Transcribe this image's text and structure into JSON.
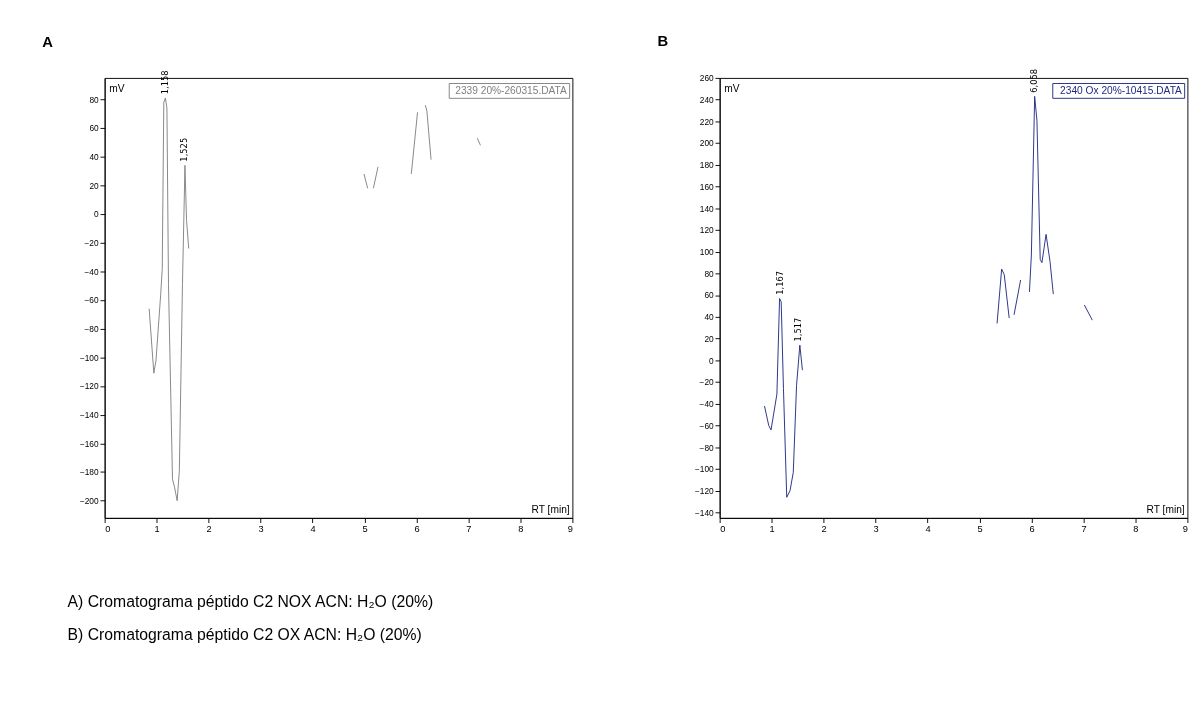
{
  "chart_data": [
    {
      "type": "line",
      "title": "A",
      "xlabel": "RT [min]",
      "ylabel": "mV",
      "xlim": [
        0,
        9
      ],
      "xticks": [
        0,
        1,
        2,
        3,
        4,
        5,
        6,
        7,
        8,
        9
      ],
      "ylim": [
        -212,
        95
      ],
      "yticks": [
        80,
        60,
        40,
        20,
        0,
        -20,
        -40,
        -60,
        -80,
        -100,
        -120,
        -140,
        -160,
        -180,
        -200
      ],
      "legend": "top right",
      "grid": false,
      "x": [
        0.856,
        0.946,
        0.988,
        1.078,
        1.108,
        1.138,
        1.168,
        1.198,
        1.228,
        1.305,
        1.347,
        1.395,
        1.437,
        1.497,
        1.545,
        1.575,
        1.617,
        1.62,
        4.99,
        5.06,
        5.1,
        5.17,
        5.26,
        5.27,
        5.9,
        6.02,
        6.1,
        6.17,
        6.2,
        6.28,
        6.3,
        7.17,
        7.23
      ],
      "series": [
        {
          "name": "2339 20%-260315.DATA",
          "color": "#808080",
          "values": [
            -66,
            -111,
            -102,
            -56,
            -38,
            78,
            81,
            74,
            -49,
            -185,
            -191,
            -200,
            -179,
            -49,
            34,
            -4,
            -24,
            null,
            28,
            18,
            null,
            18,
            33,
            null,
            28,
            71,
            null,
            76,
            72,
            38,
            null,
            53,
            48
          ]
        }
      ],
      "annotations": [
        {
          "text": "1,158",
          "x": 1.158,
          "y": 81
        },
        {
          "text": "1,525",
          "x": 1.525,
          "y": 34
        },
        "A) Cromatograma péptido C2 NOX ACN: H₂O (20%)"
      ]
    },
    {
      "type": "line",
      "title": "B",
      "xlabel": "RT [min]",
      "ylabel": "mV",
      "xlim": [
        0,
        9
      ],
      "xticks": [
        0,
        1,
        2,
        3,
        4,
        5,
        6,
        7,
        8,
        9
      ],
      "ylim": [
        -145,
        260
      ],
      "yticks": [
        260,
        240,
        220,
        200,
        180,
        160,
        140,
        120,
        100,
        80,
        60,
        40,
        20,
        0,
        -20,
        -40,
        -60,
        -80,
        -100,
        -120,
        -140
      ],
      "legend": "top right",
      "grid": false,
      "x": [
        0.862,
        0.944,
        0.988,
        1.101,
        1.152,
        1.183,
        1.227,
        1.29,
        1.353,
        1.416,
        1.479,
        1.542,
        1.592,
        1.6,
        5.337,
        5.425,
        5.475,
        5.57,
        5.6,
        5.664,
        5.79,
        5.9,
        5.96,
        5.997,
        6.06,
        6.104,
        6.167,
        6.2,
        6.28,
        6.356,
        6.419,
        6.5,
        7.017,
        7.17
      ],
      "series": [
        {
          "name": "2340 Ox 20%-10415.DATA",
          "color": "#1f2a80",
          "values": [
            -42,
            -60,
            -64,
            -31,
            57,
            54,
            -26,
            -126,
            -120,
            -103,
            -23,
            14,
            -9,
            null,
            34,
            84,
            79,
            39,
            null,
            42,
            74,
            null,
            63,
            97,
            243,
            221,
            93,
            90,
            116,
            91,
            61,
            null,
            51,
            37
          ]
        }
      ],
      "annotations": [
        {
          "text": "1,167",
          "x": 1.167,
          "y": 57
        },
        {
          "text": "1,517",
          "x": 1.517,
          "y": 14
        },
        {
          "text": "6,058",
          "x": 6.058,
          "y": 243
        },
        "B) Cromatograma péptido C2 OX ACN: H₂O (20%)"
      ]
    }
  ]
}
